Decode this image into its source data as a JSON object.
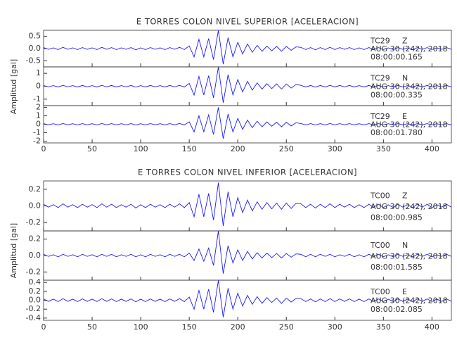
{
  "chart_data": [
    {
      "type": "line",
      "title": "E TORRES COLON NIVEL SUPERIOR [ACELERACION]",
      "ylabel": "Amplitud [gal]",
      "color": "#1a1aff",
      "xlim": [
        0,
        420
      ],
      "xticks": [
        0,
        50,
        100,
        150,
        200,
        250,
        300,
        350,
        400
      ],
      "x": [
        0,
        5,
        10,
        15,
        20,
        25,
        30,
        35,
        40,
        45,
        50,
        55,
        60,
        65,
        70,
        75,
        80,
        85,
        90,
        95,
        100,
        105,
        110,
        115,
        120,
        125,
        130,
        135,
        140,
        145,
        150,
        155,
        160,
        165,
        170,
        175,
        180,
        185,
        190,
        195,
        200,
        205,
        210,
        215,
        220,
        225,
        230,
        235,
        240,
        245,
        250,
        255,
        260,
        265,
        270,
        275,
        280,
        285,
        290,
        295,
        300,
        305,
        310,
        315,
        320,
        325,
        330,
        335,
        340,
        345,
        350,
        355,
        360,
        365,
        370,
        375,
        380,
        385,
        390,
        395,
        400,
        405,
        410,
        415,
        420
      ],
      "traces": [
        {
          "station": "TC29",
          "component": "Z",
          "date": "AUG 30 (242), 2018",
          "time": "08:00:00.165",
          "ylim": [
            -0.75,
            0.75
          ],
          "yticks": [
            -0.5,
            {
              "value": 0,
              "label": "0.0"
            },
            0.5
          ],
          "values": [
            0.04,
            -0.03,
            0.03,
            -0.04,
            0.05,
            -0.03,
            0.03,
            -0.04,
            0.04,
            -0.03,
            0.03,
            -0.04,
            0.05,
            -0.03,
            0.04,
            -0.04,
            0.03,
            -0.03,
            0.04,
            -0.05,
            0.03,
            -0.04,
            0.04,
            -0.03,
            0.03,
            -0.04,
            0.04,
            -0.03,
            0.05,
            -0.04,
            0.11,
            -0.34,
            0.38,
            -0.34,
            0.41,
            -0.45,
            0.75,
            -0.64,
            0.45,
            -0.34,
            0.26,
            -0.22,
            0.19,
            -0.15,
            0.13,
            -0.11,
            0.1,
            -0.09,
            0.09,
            -0.11,
            0.09,
            -0.07,
            0.07,
            0.05,
            -0.04,
            0.04,
            -0.05,
            0.04,
            -0.04,
            0.05,
            -0.04,
            0.04,
            -0.03,
            0.04,
            -0.04,
            0.03,
            -0.04,
            0.04,
            -0.03,
            0.04,
            -0.04,
            0.03,
            -0.04,
            0.04,
            -0.03,
            0.03,
            -0.04,
            0.04,
            -0.03,
            0.04,
            -0.04,
            0.03,
            -0.03,
            0.04,
            -0.03
          ]
        },
        {
          "station": "TC29",
          "component": "N",
          "date": "AUG 30 (242), 2018",
          "time": "08:00:00.335",
          "ylim": [
            -1.5,
            1.5
          ],
          "yticks": [
            -1,
            0,
            1
          ],
          "values": [
            0.06,
            -0.05,
            0.05,
            -0.06,
            0.07,
            -0.05,
            0.05,
            -0.06,
            0.06,
            -0.05,
            0.05,
            -0.06,
            0.07,
            -0.05,
            0.06,
            -0.06,
            0.05,
            -0.05,
            0.06,
            -0.07,
            0.05,
            -0.06,
            0.06,
            -0.05,
            0.05,
            -0.06,
            0.06,
            -0.05,
            0.07,
            -0.06,
            0.22,
            -0.68,
            0.76,
            -0.68,
            0.82,
            -0.9,
            1.5,
            -1.28,
            0.9,
            -0.68,
            0.52,
            -0.44,
            0.38,
            -0.3,
            0.26,
            -0.22,
            0.2,
            -0.18,
            0.18,
            -0.22,
            0.18,
            -0.14,
            0.14,
            0.07,
            -0.06,
            0.06,
            -0.07,
            0.06,
            -0.06,
            0.07,
            -0.06,
            0.06,
            -0.05,
            0.06,
            -0.06,
            0.05,
            -0.06,
            0.06,
            -0.05,
            0.06,
            -0.06,
            0.05,
            -0.06,
            0.06,
            -0.05,
            0.05,
            -0.06,
            0.06,
            -0.05,
            0.06,
            -0.06,
            0.05,
            -0.05,
            0.06,
            -0.05
          ]
        },
        {
          "station": "TC29",
          "component": "E",
          "date": "AUG 30 (242), 2018",
          "time": "08:00:01.780",
          "ylim": [
            -2.2,
            2.2
          ],
          "yticks": [
            -2,
            -1,
            0,
            1,
            2
          ],
          "values": [
            0.08,
            -0.07,
            0.07,
            -0.08,
            0.09,
            -0.07,
            0.07,
            -0.08,
            0.08,
            -0.07,
            0.07,
            -0.08,
            0.09,
            -0.07,
            0.08,
            -0.08,
            0.07,
            -0.07,
            0.08,
            -0.09,
            0.07,
            -0.08,
            0.08,
            -0.07,
            0.07,
            -0.08,
            0.08,
            -0.07,
            0.09,
            -0.08,
            0.29,
            -0.9,
            1.0,
            -0.9,
            1.1,
            -1.2,
            2.0,
            -1.7,
            1.2,
            -0.9,
            0.7,
            -0.6,
            0.5,
            -0.4,
            0.36,
            -0.3,
            0.28,
            -0.24,
            0.24,
            -0.3,
            0.24,
            -0.2,
            0.18,
            0.09,
            -0.08,
            0.08,
            -0.09,
            0.08,
            -0.08,
            0.09,
            -0.08,
            0.08,
            -0.07,
            0.08,
            -0.08,
            0.07,
            -0.08,
            0.08,
            -0.07,
            0.08,
            -0.08,
            0.07,
            -0.08,
            0.08,
            -0.07,
            0.07,
            -0.08,
            0.08,
            -0.07,
            0.08,
            -0.08,
            0.07,
            -0.07,
            0.08,
            -0.07
          ]
        }
      ]
    },
    {
      "type": "line",
      "title": "E TORRES COLON NIVEL INFERIOR [ACELERACION]",
      "ylabel": "Amplitud [gal]",
      "color": "#1a1aff",
      "xlim": [
        0,
        420
      ],
      "xticks": [
        0,
        50,
        100,
        150,
        200,
        250,
        300,
        350,
        400
      ],
      "x": [
        0,
        5,
        10,
        15,
        20,
        25,
        30,
        35,
        40,
        45,
        50,
        55,
        60,
        65,
        70,
        75,
        80,
        85,
        90,
        95,
        100,
        105,
        110,
        115,
        120,
        125,
        130,
        135,
        140,
        145,
        150,
        155,
        160,
        165,
        170,
        175,
        180,
        185,
        190,
        195,
        200,
        205,
        210,
        215,
        220,
        225,
        230,
        235,
        240,
        245,
        250,
        255,
        260,
        265,
        270,
        275,
        280,
        285,
        290,
        295,
        300,
        305,
        310,
        315,
        320,
        325,
        330,
        335,
        340,
        345,
        350,
        355,
        360,
        365,
        370,
        375,
        380,
        385,
        390,
        395,
        400,
        405,
        410,
        415,
        420
      ],
      "traces": [
        {
          "station": "TC00",
          "component": "Z",
          "date": "AUG 30 (242), 2018",
          "time": "08:00:00.985",
          "ylim": [
            -0.3,
            0.3
          ],
          "yticks": [
            -0.2,
            {
              "value": 0,
              "label": "0.0"
            },
            0.2
          ],
          "values": [
            0.02,
            -0.015,
            0.015,
            -0.02,
            0.025,
            -0.015,
            0.015,
            -0.02,
            0.02,
            -0.015,
            0.015,
            -0.02,
            0.025,
            -0.015,
            0.02,
            -0.02,
            0.015,
            -0.015,
            0.02,
            -0.025,
            0.015,
            -0.02,
            0.02,
            -0.015,
            0.015,
            -0.02,
            0.02,
            -0.015,
            0.025,
            -0.02,
            0.04,
            -0.13,
            0.14,
            -0.13,
            0.15,
            -0.17,
            0.28,
            -0.24,
            0.17,
            -0.13,
            0.1,
            -0.08,
            0.07,
            -0.06,
            0.05,
            -0.04,
            0.04,
            -0.035,
            0.035,
            -0.04,
            0.035,
            -0.03,
            0.03,
            0.025,
            -0.02,
            0.02,
            -0.025,
            0.02,
            -0.02,
            0.025,
            -0.02,
            0.02,
            -0.015,
            0.02,
            -0.02,
            0.015,
            -0.02,
            0.02,
            -0.015,
            0.02,
            -0.02,
            0.015,
            -0.02,
            0.02,
            -0.015,
            0.015,
            -0.02,
            0.02,
            -0.015,
            0.02,
            -0.02,
            0.015,
            -0.015,
            0.02,
            -0.015
          ]
        },
        {
          "station": "TC00",
          "component": "N",
          "date": "AUG 30 (242), 2018",
          "time": "08:00:01.585",
          "ylim": [
            -0.3,
            0.3
          ],
          "yticks": [
            -0.2,
            {
              "value": 0,
              "label": "0.0"
            },
            0.2
          ],
          "values": [
            0.015,
            -0.01,
            0.01,
            -0.015,
            0.015,
            -0.01,
            0.01,
            -0.015,
            0.015,
            -0.01,
            0.01,
            -0.015,
            0.015,
            -0.01,
            0.015,
            -0.015,
            0.01,
            -0.01,
            0.015,
            -0.015,
            0.01,
            -0.015,
            0.015,
            -0.01,
            0.01,
            -0.015,
            0.015,
            -0.01,
            0.015,
            -0.015,
            0.03,
            -0.06,
            0.08,
            -0.07,
            0.09,
            -0.12,
            0.3,
            -0.22,
            0.12,
            -0.09,
            0.07,
            -0.06,
            0.05,
            -0.04,
            0.035,
            -0.03,
            0.03,
            -0.025,
            0.025,
            -0.03,
            0.025,
            -0.02,
            0.02,
            0.015,
            -0.015,
            0.015,
            -0.015,
            0.015,
            -0.01,
            0.015,
            -0.015,
            0.01,
            -0.01,
            0.015,
            -0.015,
            0.01,
            -0.015,
            0.015,
            -0.01,
            0.015,
            -0.015,
            0.01,
            -0.015,
            0.015,
            -0.01,
            0.01,
            -0.015,
            0.015,
            -0.01,
            0.015,
            -0.015,
            0.01,
            -0.01,
            0.015,
            -0.01
          ]
        },
        {
          "station": "TC00",
          "component": "E",
          "date": "AUG 30 (242), 2018",
          "time": "08:00:02.085",
          "ylim": [
            -0.45,
            0.45
          ],
          "yticks": [
            -0.4,
            -0.2,
            {
              "value": 0,
              "label": "0.0"
            },
            0.2,
            0.4
          ],
          "values": [
            0.03,
            -0.025,
            0.025,
            -0.03,
            0.035,
            -0.025,
            0.025,
            -0.03,
            0.03,
            -0.025,
            0.025,
            -0.03,
            0.035,
            -0.025,
            0.03,
            -0.03,
            0.025,
            -0.025,
            0.03,
            -0.035,
            0.025,
            -0.03,
            0.03,
            -0.025,
            0.025,
            -0.03,
            0.03,
            -0.025,
            0.035,
            -0.03,
            0.07,
            -0.2,
            0.22,
            -0.2,
            0.25,
            -0.27,
            0.45,
            -0.38,
            0.27,
            -0.2,
            0.16,
            -0.13,
            0.11,
            -0.09,
            0.08,
            -0.07,
            0.06,
            -0.05,
            0.05,
            -0.07,
            0.05,
            -0.04,
            0.04,
            0.035,
            -0.03,
            0.03,
            -0.035,
            0.03,
            -0.03,
            0.035,
            -0.03,
            0.03,
            -0.025,
            0.03,
            -0.03,
            0.025,
            -0.03,
            0.03,
            -0.025,
            0.03,
            -0.03,
            0.025,
            -0.03,
            0.03,
            -0.025,
            0.025,
            -0.03,
            0.03,
            -0.025,
            0.03,
            -0.03,
            0.025,
            -0.025,
            0.03,
            -0.025
          ]
        }
      ]
    }
  ]
}
